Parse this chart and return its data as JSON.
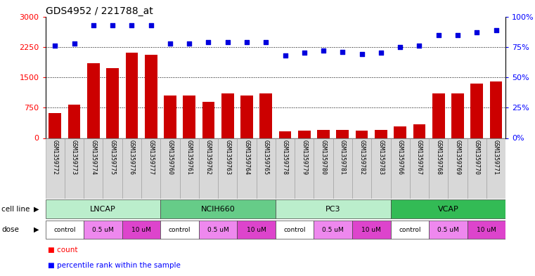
{
  "title": "GDS4952 / 221788_at",
  "samples": [
    "GSM1359772",
    "GSM1359773",
    "GSM1359774",
    "GSM1359775",
    "GSM1359776",
    "GSM1359777",
    "GSM1359760",
    "GSM1359761",
    "GSM1359762",
    "GSM1359763",
    "GSM1359764",
    "GSM1359765",
    "GSM1359778",
    "GSM1359779",
    "GSM1359780",
    "GSM1359781",
    "GSM1359782",
    "GSM1359783",
    "GSM1359766",
    "GSM1359767",
    "GSM1359768",
    "GSM1359769",
    "GSM1359770",
    "GSM1359771"
  ],
  "counts": [
    620,
    830,
    1850,
    1720,
    2100,
    2050,
    1050,
    1050,
    900,
    1100,
    1050,
    1100,
    170,
    185,
    195,
    200,
    175,
    200,
    280,
    340,
    1100,
    1100,
    1350,
    1400
  ],
  "percentile_ranks": [
    76,
    78,
    93,
    93,
    93,
    93,
    78,
    78,
    79,
    79,
    79,
    79,
    68,
    70,
    72,
    71,
    69,
    70,
    75,
    76,
    85,
    85,
    87,
    89
  ],
  "cell_lines": [
    {
      "name": "LNCAP",
      "start": 0,
      "end": 6,
      "color": "#aaeebb"
    },
    {
      "name": "NCIH660",
      "start": 6,
      "end": 12,
      "color": "#66cc88"
    },
    {
      "name": "PC3",
      "start": 12,
      "end": 18,
      "color": "#aaeebb"
    },
    {
      "name": "VCAP",
      "start": 18,
      "end": 24,
      "color": "#33bb55"
    }
  ],
  "doses": [
    {
      "name": "control",
      "start": 0,
      "end": 2,
      "color": "#ffffff"
    },
    {
      "name": "0.5 uM",
      "start": 2,
      "end": 4,
      "color": "#ee88ee"
    },
    {
      "name": "10 uM",
      "start": 4,
      "end": 6,
      "color": "#dd44cc"
    },
    {
      "name": "control",
      "start": 6,
      "end": 8,
      "color": "#ffffff"
    },
    {
      "name": "0.5 uM",
      "start": 8,
      "end": 10,
      "color": "#ee88ee"
    },
    {
      "name": "10 uM",
      "start": 10,
      "end": 12,
      "color": "#dd44cc"
    },
    {
      "name": "control",
      "start": 12,
      "end": 14,
      "color": "#ffffff"
    },
    {
      "name": "0.5 uM",
      "start": 14,
      "end": 16,
      "color": "#ee88ee"
    },
    {
      "name": "10 uM",
      "start": 16,
      "end": 18,
      "color": "#dd44cc"
    },
    {
      "name": "control",
      "start": 18,
      "end": 20,
      "color": "#ffffff"
    },
    {
      "name": "0.5 uM",
      "start": 20,
      "end": 22,
      "color": "#ee88ee"
    },
    {
      "name": "10 uM",
      "start": 22,
      "end": 24,
      "color": "#dd44cc"
    }
  ],
  "bar_color": "#cc0000",
  "dot_color": "#0000dd",
  "left_ylim": [
    0,
    3000
  ],
  "right_ylim": [
    0,
    100
  ],
  "left_yticks": [
    0,
    750,
    1500,
    2250,
    3000
  ],
  "right_yticks": [
    0,
    25,
    50,
    75,
    100
  ],
  "hlines": [
    750,
    1500,
    2250
  ],
  "title_fontsize": 10
}
